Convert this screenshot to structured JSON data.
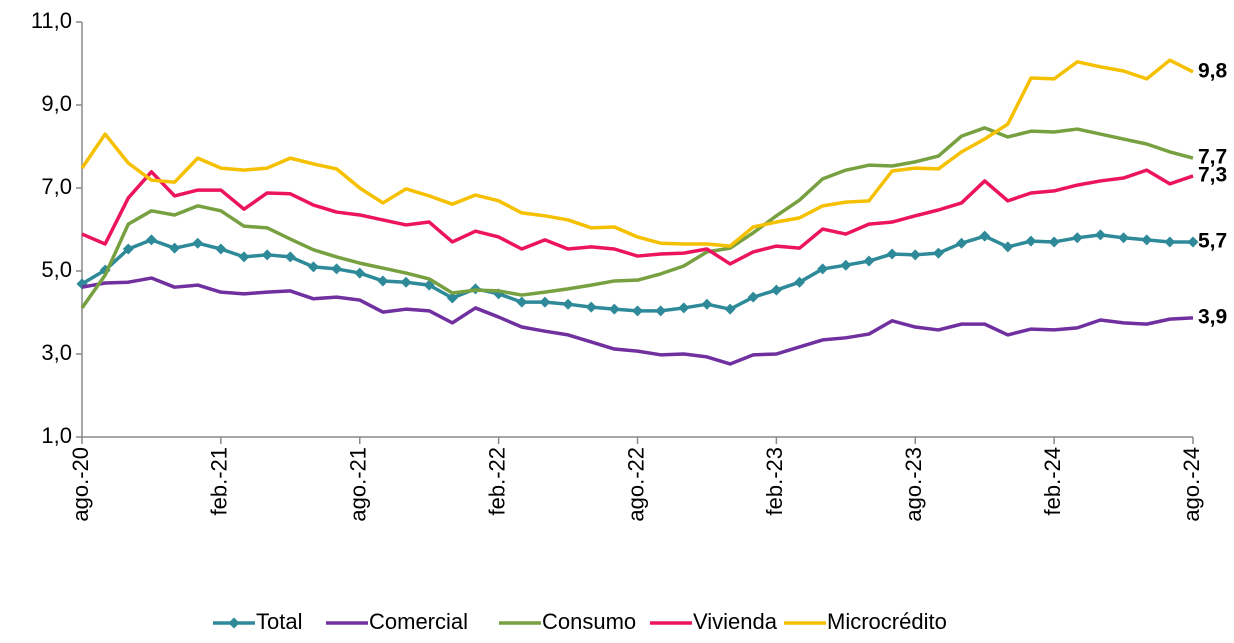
{
  "chart_data": {
    "type": "line",
    "categories": [
      "ago.-20",
      null,
      null,
      null,
      null,
      null,
      "feb.-21",
      null,
      null,
      null,
      null,
      null,
      "ago.-21",
      null,
      null,
      null,
      null,
      null,
      "feb.-22",
      null,
      null,
      null,
      null,
      null,
      "ago.-22",
      null,
      null,
      null,
      null,
      null,
      "feb.-23",
      null,
      null,
      null,
      null,
      null,
      "ago.-23",
      null,
      null,
      null,
      null,
      null,
      "feb.-24",
      null,
      null,
      null,
      null,
      null,
      "ago.-24"
    ],
    "ylim": [
      1,
      11
    ],
    "yticks": [
      {
        "value": 1,
        "label": "1,0"
      },
      {
        "value": 3,
        "label": "3,0"
      },
      {
        "value": 5,
        "label": "5,0"
      },
      {
        "value": 7,
        "label": "7,0"
      },
      {
        "value": 9,
        "label": "9,0"
      },
      {
        "value": 11,
        "label": "11,0"
      }
    ],
    "grid": false,
    "legend": "bottom",
    "series": [
      {
        "name": "Total",
        "color": "#2e8a99",
        "marker": "diamond",
        "values": [
          4.69,
          5.02,
          5.53,
          5.75,
          5.55,
          5.67,
          5.53,
          5.34,
          5.39,
          5.34,
          5.1,
          5.05,
          4.95,
          4.76,
          4.73,
          4.66,
          4.35,
          4.57,
          4.45,
          4.25,
          4.25,
          4.2,
          4.13,
          4.08,
          4.04,
          4.04,
          4.11,
          4.2,
          4.08,
          4.37,
          4.54,
          4.73,
          5.05,
          5.14,
          5.24,
          5.41,
          5.39,
          5.43,
          5.67,
          5.84,
          5.58,
          5.72,
          5.7,
          5.8,
          5.87,
          5.8,
          5.75,
          5.7,
          5.7
        ],
        "value_labels": [
          null,
          null,
          null,
          null,
          null,
          null,
          null,
          null,
          null,
          null,
          null,
          null,
          null,
          null,
          null,
          null,
          null,
          null,
          null,
          null,
          null,
          null,
          null,
          null,
          null,
          null,
          null,
          null,
          null,
          null,
          null,
          null,
          null,
          null,
          null,
          null,
          null,
          null,
          null,
          null,
          null,
          null,
          null,
          null,
          null,
          null,
          null,
          null,
          "5,7"
        ]
      },
      {
        "name": "Comercial",
        "color": "#7030a0",
        "values": [
          4.61,
          4.71,
          4.73,
          4.83,
          4.61,
          4.66,
          4.49,
          4.45,
          4.49,
          4.52,
          4.33,
          4.37,
          4.3,
          4.01,
          4.08,
          4.04,
          3.75,
          4.11,
          3.89,
          3.65,
          3.55,
          3.46,
          3.29,
          3.12,
          3.07,
          2.98,
          3.0,
          2.93,
          2.76,
          2.98,
          3.0,
          3.17,
          3.34,
          3.39,
          3.48,
          3.8,
          3.65,
          3.58,
          3.72,
          3.72,
          3.46,
          3.6,
          3.58,
          3.63,
          3.82,
          3.75,
          3.72,
          3.84,
          3.87
        ],
        "value_labels": [
          null,
          null,
          null,
          null,
          null,
          null,
          null,
          null,
          null,
          null,
          null,
          null,
          null,
          null,
          null,
          null,
          null,
          null,
          null,
          null,
          null,
          null,
          null,
          null,
          null,
          null,
          null,
          null,
          null,
          null,
          null,
          null,
          null,
          null,
          null,
          null,
          null,
          null,
          null,
          null,
          null,
          null,
          null,
          null,
          null,
          null,
          null,
          null,
          "3,9"
        ]
      },
      {
        "name": "Consumo",
        "color": "#77a040",
        "values": [
          4.11,
          4.9,
          6.13,
          6.45,
          6.35,
          6.57,
          6.45,
          6.08,
          6.04,
          5.77,
          5.51,
          5.34,
          5.19,
          5.07,
          4.95,
          4.81,
          4.47,
          4.54,
          4.52,
          4.42,
          4.49,
          4.57,
          4.66,
          4.76,
          4.78,
          4.93,
          5.12,
          5.46,
          5.55,
          5.92,
          6.33,
          6.71,
          7.22,
          7.43,
          7.55,
          7.53,
          7.63,
          7.77,
          8.25,
          8.45,
          8.23,
          8.37,
          8.35,
          8.42,
          8.3,
          8.18,
          8.06,
          7.87,
          7.72
        ],
        "value_labels": [
          null,
          null,
          null,
          null,
          null,
          null,
          null,
          null,
          null,
          null,
          null,
          null,
          null,
          null,
          null,
          null,
          null,
          null,
          null,
          null,
          null,
          null,
          null,
          null,
          null,
          null,
          null,
          null,
          null,
          null,
          null,
          null,
          null,
          null,
          null,
          null,
          null,
          null,
          null,
          null,
          null,
          null,
          null,
          null,
          null,
          null,
          null,
          null,
          "7,7"
        ]
      },
      {
        "name": "Vivienda",
        "color": "#ec145f",
        "values": [
          5.89,
          5.65,
          6.76,
          7.39,
          6.81,
          6.95,
          6.95,
          6.49,
          6.88,
          6.86,
          6.59,
          6.42,
          6.35,
          6.23,
          6.11,
          6.18,
          5.7,
          5.96,
          5.82,
          5.53,
          5.75,
          5.53,
          5.58,
          5.53,
          5.36,
          5.41,
          5.43,
          5.53,
          5.17,
          5.46,
          5.6,
          5.55,
          6.01,
          5.89,
          6.13,
          6.18,
          6.33,
          6.47,
          6.64,
          7.17,
          6.69,
          6.88,
          6.93,
          7.07,
          7.17,
          7.24,
          7.43,
          7.1,
          7.29
        ],
        "value_labels": [
          null,
          null,
          null,
          null,
          null,
          null,
          null,
          null,
          null,
          null,
          null,
          null,
          null,
          null,
          null,
          null,
          null,
          null,
          null,
          null,
          null,
          null,
          null,
          null,
          null,
          null,
          null,
          null,
          null,
          null,
          null,
          null,
          null,
          null,
          null,
          null,
          null,
          null,
          null,
          null,
          null,
          null,
          null,
          null,
          null,
          null,
          null,
          null,
          "7,3"
        ]
      },
      {
        "name": "Microcrédito",
        "color": "#f5c000",
        "values": [
          7.48,
          8.3,
          7.6,
          7.19,
          7.14,
          7.72,
          7.48,
          7.43,
          7.48,
          7.72,
          7.58,
          7.46,
          7.0,
          6.64,
          6.98,
          6.81,
          6.61,
          6.83,
          6.69,
          6.4,
          6.33,
          6.23,
          6.04,
          6.06,
          5.82,
          5.67,
          5.65,
          5.65,
          5.6,
          6.06,
          6.18,
          6.28,
          6.57,
          6.66,
          6.69,
          7.41,
          7.48,
          7.46,
          7.87,
          8.18,
          8.54,
          9.65,
          9.63,
          10.04,
          9.92,
          9.82,
          9.63,
          10.08,
          9.8
        ],
        "value_labels": [
          null,
          null,
          null,
          null,
          null,
          null,
          null,
          null,
          null,
          null,
          null,
          null,
          null,
          null,
          null,
          null,
          null,
          null,
          null,
          null,
          null,
          null,
          null,
          null,
          null,
          null,
          null,
          null,
          null,
          null,
          null,
          null,
          null,
          null,
          null,
          null,
          null,
          null,
          null,
          null,
          null,
          null,
          null,
          null,
          null,
          null,
          null,
          null,
          "9,8"
        ]
      }
    ]
  }
}
